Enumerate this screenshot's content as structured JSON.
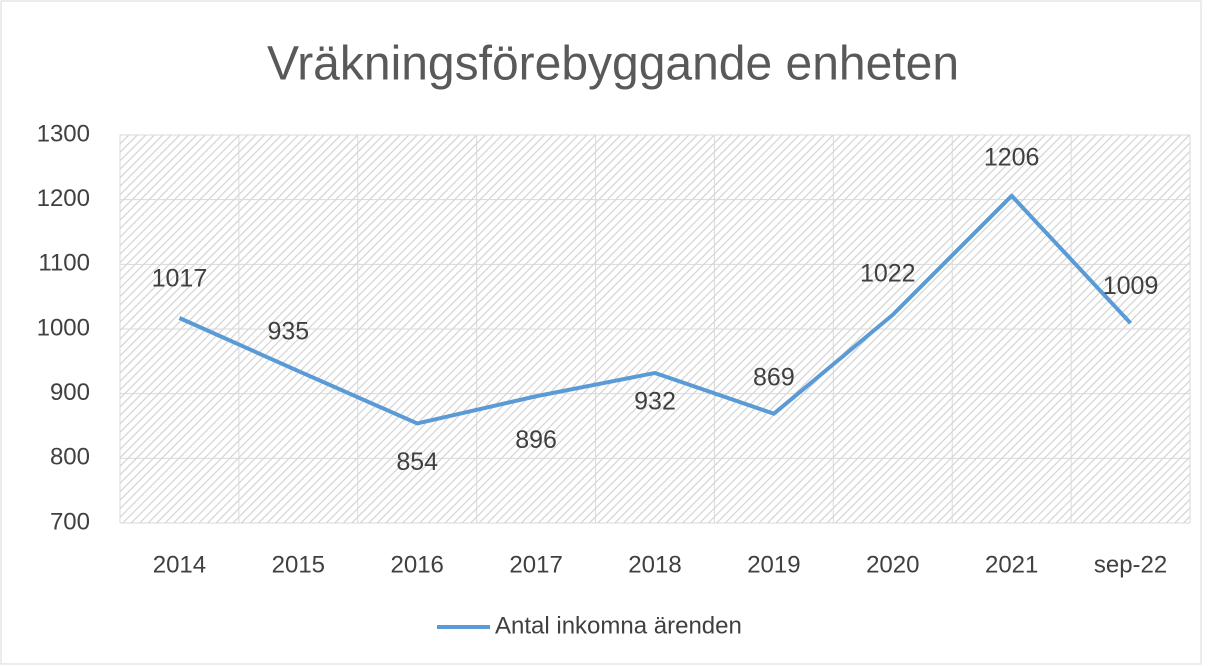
{
  "chart_data": {
    "type": "line",
    "title": "Vräkningsförebyggande enheten",
    "categories": [
      "2014",
      "2015",
      "2016",
      "2017",
      "2018",
      "2019",
      "2020",
      "2021",
      "sep-22"
    ],
    "series": [
      {
        "name": "Antal inkomna ärenden",
        "color": "#5b9bd5",
        "values": [
          1017,
          935,
          854,
          896,
          932,
          869,
          1022,
          1206,
          1009
        ]
      }
    ],
    "ylim": [
      700,
      1300
    ],
    "yticks": [
      700,
      800,
      900,
      1000,
      1100,
      1200,
      1300
    ],
    "grid": true,
    "legend": "bottom"
  }
}
